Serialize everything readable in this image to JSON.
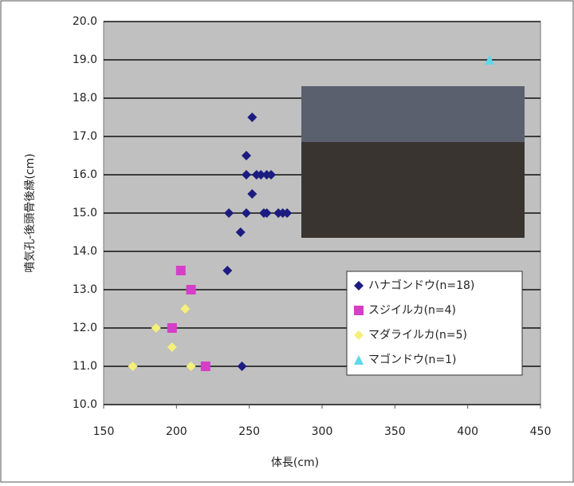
{
  "chart_data": {
    "type": "scatter",
    "x_label": "体長(cm)",
    "y_label": "噴気孔-後頭骨後縁(cm)",
    "xlim": [
      150,
      450
    ],
    "xticks": [
      150,
      200,
      250,
      300,
      350,
      400,
      450
    ],
    "ylim": [
      10,
      20
    ],
    "yticks": [
      {
        "value": 10,
        "label": "10.0"
      },
      {
        "value": 11,
        "label": "11.0"
      },
      {
        "value": 12,
        "label": "12.0"
      },
      {
        "value": 13,
        "label": "13.0"
      },
      {
        "value": 14,
        "label": "14.0"
      },
      {
        "value": 15,
        "label": "15.0"
      },
      {
        "value": 16,
        "label": "16.0"
      },
      {
        "value": 17,
        "label": "17.0"
      },
      {
        "value": 18,
        "label": "18.0"
      },
      {
        "value": 19,
        "label": "19.0"
      },
      {
        "value": 20,
        "label": "20.0"
      }
    ],
    "grid": true,
    "legend": "lower right",
    "series": [
      {
        "name": "ハナゴンドウ(n=18)",
        "color": "#1c1c80",
        "marker": "diamond",
        "x": [
          252,
          248,
          248,
          255,
          258,
          262,
          265,
          252,
          236,
          248,
          260,
          270,
          273,
          276,
          244,
          235,
          245,
          262
        ],
        "y": [
          17.5,
          16.5,
          16,
          16,
          16,
          16,
          16,
          15.5,
          15,
          15,
          15,
          15,
          15,
          15,
          14.5,
          13.5,
          11,
          15
        ]
      },
      {
        "name": "スジイルカ(n=4)",
        "color": "#d43fc8",
        "marker": "square",
        "x": [
          203,
          210,
          197,
          220
        ],
        "y": [
          13.5,
          13,
          12,
          11
        ]
      },
      {
        "name": "マダライルカ(n=5)",
        "color": "#f5f07a",
        "marker": "diamond",
        "x": [
          170,
          186,
          197,
          206,
          210
        ],
        "y": [
          11,
          12,
          11.5,
          12.5,
          11
        ]
      },
      {
        "name": "マゴンドウ(n=1)",
        "color": "#5fd8e8",
        "marker": "triangle",
        "x": [
          415
        ],
        "y": [
          19
        ]
      }
    ]
  }
}
